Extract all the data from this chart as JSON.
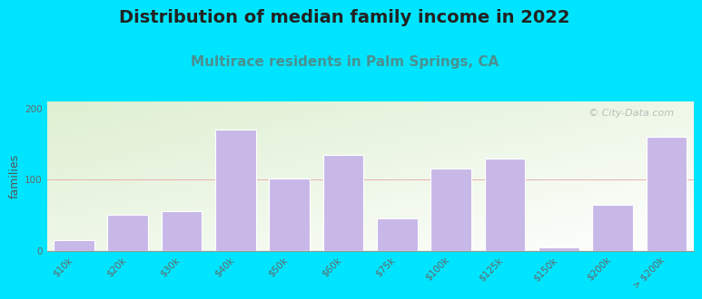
{
  "title": "Distribution of median family income in 2022",
  "subtitle": "Multirace residents in Palm Springs, CA",
  "ylabel": "families",
  "categories": [
    "$10k",
    "$20k",
    "$30k",
    "$40k",
    "$50k",
    "$60k",
    "$75k",
    "$100k",
    "$125k",
    "$150k",
    "$200k",
    "> $200k"
  ],
  "values": [
    15,
    50,
    55,
    170,
    102,
    135,
    45,
    115,
    130,
    5,
    65,
    160
  ],
  "bar_color": "#c8b8e8",
  "background_outer": "#00e5ff",
  "background_inner_top_left": "#dff0d0",
  "background_inner_bottom_right": "#f8f8ff",
  "title_color": "#222222",
  "subtitle_color": "#4a9090",
  "ylabel_color": "#555555",
  "tick_color": "#666666",
  "title_fontsize": 14,
  "subtitle_fontsize": 11,
  "ylabel_fontsize": 9,
  "tick_fontsize": 7.5,
  "ylim": [
    0,
    210
  ],
  "yticks": [
    0,
    100,
    200
  ],
  "watermark": "© City-Data.com",
  "watermark_color": "#aaaaaa"
}
